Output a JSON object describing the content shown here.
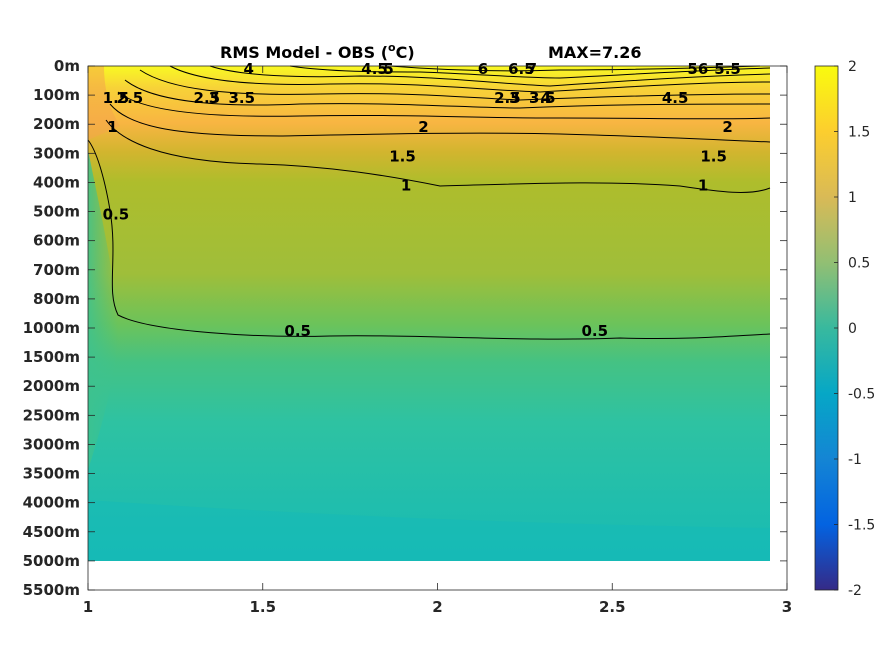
{
  "chart_data": {
    "type": "heatmap",
    "title": "RMS Model - OBS (",
    "title_sup": "o",
    "title_unit": "C)",
    "max_label": "MAX=7.26",
    "xlim": [
      1,
      3
    ],
    "x_ticks": [
      "1",
      "1.5",
      "2",
      "2.5",
      "3"
    ],
    "y_ticks": [
      "0m",
      "100m",
      "200m",
      "300m",
      "400m",
      "500m",
      "600m",
      "700m",
      "800m",
      "1000m",
      "1500m",
      "2000m",
      "2500m",
      "3000m",
      "3500m",
      "4000m",
      "4500m",
      "5000m",
      "5500m"
    ],
    "colorbar": {
      "colormap": "parula",
      "clim": [
        -2,
        2
      ],
      "ticks": [
        "2",
        "1.5",
        "1",
        "0.5",
        "0",
        "-0.5",
        "-1",
        "-1.5",
        "-2"
      ]
    },
    "contour_labels": [
      {
        "text": "4",
        "x": 1.46,
        "y": "0m"
      },
      {
        "text": "3.5",
        "x": 1.44,
        "y": "100m"
      },
      {
        "text": "3",
        "x": 1.36,
        "y": "100m"
      },
      {
        "text": "2.5",
        "x": 1.34,
        "y": "100m"
      },
      {
        "text": "2.5",
        "x": 1.12,
        "y": "100m"
      },
      {
        "text": "1.5",
        "x": 1.08,
        "y": "100m"
      },
      {
        "text": "1",
        "x": 1.07,
        "y": "200m"
      },
      {
        "text": "4.5",
        "x": 1.82,
        "y": "0m"
      },
      {
        "text": "5",
        "x": 1.86,
        "y": "0m"
      },
      {
        "text": "6",
        "x": 2.13,
        "y": "0m"
      },
      {
        "text": "6.5",
        "x": 2.24,
        "y": "0m"
      },
      {
        "text": "7",
        "x": 2.27,
        "y": "0m"
      },
      {
        "text": "3",
        "x": 2.22,
        "y": "100m"
      },
      {
        "text": "3.5",
        "x": 2.3,
        "y": "100m"
      },
      {
        "text": "4",
        "x": 2.31,
        "y": "100m"
      },
      {
        "text": "2.5",
        "x": 2.2,
        "y": "100m"
      },
      {
        "text": "2",
        "x": 1.96,
        "y": "200m"
      },
      {
        "text": "1.5",
        "x": 1.9,
        "y": "300m"
      },
      {
        "text": "1",
        "x": 1.91,
        "y": "400m"
      },
      {
        "text": "6",
        "x": 2.76,
        "y": "0m"
      },
      {
        "text": "5",
        "x": 2.73,
        "y": "0m"
      },
      {
        "text": "5.5",
        "x": 2.83,
        "y": "0m"
      },
      {
        "text": "4.5",
        "x": 2.68,
        "y": "100m"
      },
      {
        "text": "2",
        "x": 2.83,
        "y": "200m"
      },
      {
        "text": "1.5",
        "x": 2.79,
        "y": "300m"
      },
      {
        "text": "1",
        "x": 2.76,
        "y": "400m"
      },
      {
        "text": "0.5",
        "x": 1.08,
        "y": "500m"
      },
      {
        "text": "0.5",
        "x": 1.6,
        "y": "1000m"
      },
      {
        "text": "0.5",
        "x": 2.45,
        "y": "1000m"
      }
    ]
  }
}
